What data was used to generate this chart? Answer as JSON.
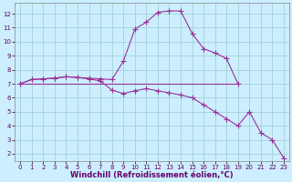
{
  "xlabel": "Windchill (Refroidissement éolien,°C)",
  "bg_color": "#cceeff",
  "line_color": "#993399",
  "grid_color": "#99cccc",
  "xlim": [
    -0.5,
    23.5
  ],
  "ylim": [
    1.5,
    12.8
  ],
  "xticks": [
    0,
    1,
    2,
    3,
    4,
    5,
    6,
    7,
    8,
    9,
    10,
    11,
    12,
    13,
    14,
    15,
    16,
    17,
    18,
    19,
    20,
    21,
    22,
    23
  ],
  "yticks": [
    2,
    3,
    4,
    5,
    6,
    7,
    8,
    9,
    10,
    11,
    12
  ],
  "line1_x": [
    0,
    1,
    2,
    3,
    4,
    5,
    6,
    7,
    8,
    9,
    10,
    11,
    12,
    13,
    14,
    15,
    16,
    17,
    18,
    19
  ],
  "line1_y": [
    7.0,
    7.3,
    7.35,
    7.4,
    7.5,
    7.45,
    7.4,
    7.35,
    7.3,
    8.6,
    10.9,
    11.4,
    12.1,
    12.2,
    12.2,
    10.6,
    9.5,
    9.2,
    8.8,
    7.0
  ],
  "line2_x": [
    0,
    19
  ],
  "line2_y": [
    7.0,
    7.0
  ],
  "line3_x": [
    0,
    1,
    2,
    3,
    4,
    5,
    6,
    7,
    8,
    9,
    10,
    11,
    12,
    13,
    14,
    15,
    16,
    17,
    18,
    19,
    20,
    21,
    22,
    23
  ],
  "line3_y": [
    7.0,
    7.3,
    7.35,
    7.4,
    7.5,
    7.45,
    7.35,
    7.2,
    6.55,
    6.3,
    6.5,
    6.65,
    6.5,
    6.35,
    6.2,
    6.0,
    5.5,
    5.0,
    4.5,
    4.0,
    5.0,
    3.5,
    3.0,
    1.7
  ],
  "marker": "+",
  "markersize": 4.0,
  "linewidth": 0.8,
  "tick_fontsize": 5.0,
  "label_fontsize": 6.0,
  "label_fontweight": "bold"
}
